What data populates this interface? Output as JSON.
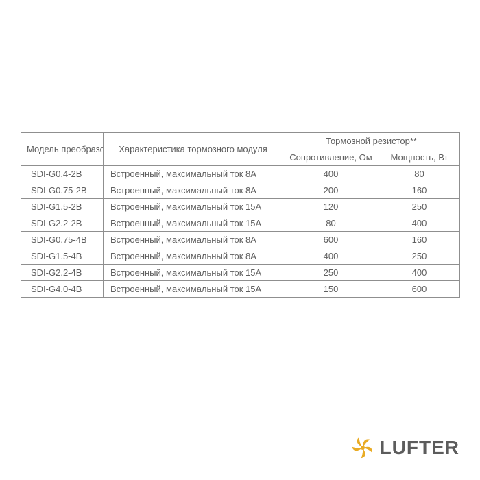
{
  "table": {
    "header": {
      "model": "Модель преобразователя частоты",
      "characteristic": "Характеристика тормозного модуля",
      "resistor_group": "Тормозной резистор**",
      "resistance": "Сопротивление, Ом",
      "power": "Мощность, Вт"
    },
    "rows": [
      {
        "model": "SDI-G0.4-2B",
        "char": "Встроенный, максимальный ток 8А",
        "res": "400",
        "pow": "80"
      },
      {
        "model": "SDI-G0.75-2B",
        "char": "Встроенный, максимальный ток 8А",
        "res": "200",
        "pow": "160"
      },
      {
        "model": "SDI-G1.5-2B",
        "char": "Встроенный, максимальный ток 15А",
        "res": "120",
        "pow": "250"
      },
      {
        "model": "SDI-G2.2-2B",
        "char": "Встроенный, максимальный ток 15А",
        "res": "80",
        "pow": "400"
      },
      {
        "model": "SDI-G0.75-4B",
        "char": "Встроенный, максимальный ток 8А",
        "res": "600",
        "pow": "160"
      },
      {
        "model": "SDI-G1.5-4B",
        "char": "Встроенный, максимальный ток 8А",
        "res": "400",
        "pow": "250"
      },
      {
        "model": "SDI-G2.2-4B",
        "char": "Встроенный, максимальный ток 15А",
        "res": "250",
        "pow": "400"
      },
      {
        "model": "SDI-G4.0-4B",
        "char": "Встроенный, максимальный ток 15А",
        "res": "150",
        "pow": "600"
      }
    ],
    "colors": {
      "border": "#8f8f8f",
      "text": "#5f5f5f",
      "background": "#ffffff"
    },
    "font_size_pt": 10
  },
  "logo": {
    "text": "LUFTER",
    "mark_color": "#e9ab24",
    "text_color": "#5c5c5c"
  }
}
